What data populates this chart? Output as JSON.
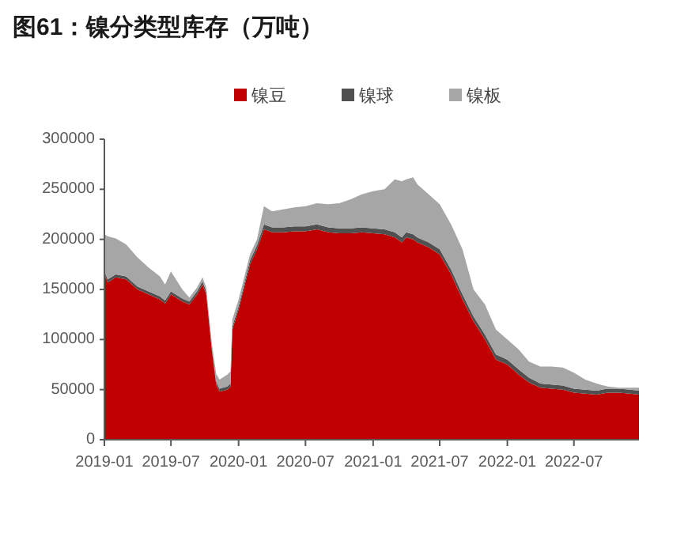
{
  "chart_data": {
    "type": "area",
    "stacked": true,
    "title": "图61：镍分类型库存（万吨）",
    "x": [
      "2019-01-01",
      "2019-01-10",
      "2019-02-01",
      "2019-03-01",
      "2019-04-01",
      "2019-05-01",
      "2019-06-01",
      "2019-06-15",
      "2019-07-01",
      "2019-08-01",
      "2019-08-20",
      "2019-09-10",
      "2019-09-25",
      "2019-10-05",
      "2019-10-20",
      "2019-11-01",
      "2019-11-10",
      "2019-12-01",
      "2019-12-10",
      "2019-12-15",
      "2020-01-01",
      "2020-02-01",
      "2020-02-20",
      "2020-03-10",
      "2020-04-01",
      "2020-05-01",
      "2020-06-01",
      "2020-07-01",
      "2020-08-01",
      "2020-09-01",
      "2020-10-01",
      "2020-11-01",
      "2020-12-01",
      "2021-01-01",
      "2021-02-01",
      "2021-03-01",
      "2021-03-20",
      "2021-04-01",
      "2021-04-20",
      "2021-05-01",
      "2021-06-01",
      "2021-07-01",
      "2021-08-01",
      "2021-09-01",
      "2021-10-01",
      "2021-11-01",
      "2021-12-01",
      "2022-01-01",
      "2022-02-01",
      "2022-03-01",
      "2022-04-01",
      "2022-05-01",
      "2022-06-01",
      "2022-07-01",
      "2022-08-01",
      "2022-09-01",
      "2022-10-01",
      "2022-11-01",
      "2022-12-01",
      "2022-12-25"
    ],
    "series": [
      {
        "name": "镍豆",
        "color": "#c00000",
        "values": [
          165000,
          157000,
          162000,
          160000,
          150000,
          145000,
          140000,
          136000,
          145000,
          138000,
          135000,
          145000,
          155000,
          145000,
          90000,
          55000,
          48000,
          50000,
          53000,
          110000,
          130000,
          175000,
          190000,
          210000,
          207000,
          207000,
          208000,
          208000,
          210000,
          207000,
          206000,
          206000,
          207000,
          206000,
          205000,
          202000,
          197000,
          202000,
          200000,
          197000,
          192000,
          185000,
          165000,
          140000,
          118000,
          100000,
          80000,
          75000,
          65000,
          57000,
          52000,
          51000,
          50000,
          47000,
          46000,
          45000,
          47000,
          47000,
          46000,
          45000
        ]
      },
      {
        "name": "镍球",
        "color": "#505050",
        "values": [
          3000,
          3000,
          3000,
          3000,
          3000,
          3000,
          3000,
          3000,
          3000,
          3000,
          3000,
          3000,
          3000,
          3000,
          3000,
          3000,
          3000,
          3000,
          3000,
          3000,
          3000,
          4000,
          4000,
          5000,
          5000,
          5000,
          5000,
          5000,
          5000,
          5000,
          5000,
          5000,
          5000,
          5000,
          5000,
          5000,
          5000,
          5000,
          5000,
          5000,
          5000,
          5000,
          5000,
          5000,
          5000,
          5000,
          5000,
          5000,
          5000,
          5000,
          4000,
          4000,
          4000,
          4000,
          4000,
          4000,
          4000,
          4000,
          4000,
          4000
        ]
      },
      {
        "name": "镍板",
        "color": "#a6a6a6",
        "values": [
          37000,
          43000,
          36000,
          32000,
          29000,
          24000,
          20000,
          16000,
          20000,
          9000,
          4000,
          4000,
          4000,
          4000,
          4000,
          8000,
          9000,
          12000,
          12000,
          7000,
          7000,
          6000,
          6000,
          18000,
          16000,
          18000,
          19000,
          20000,
          21000,
          23000,
          25000,
          29000,
          33000,
          37000,
          40000,
          53000,
          56000,
          53000,
          57000,
          53000,
          48000,
          45000,
          45000,
          45000,
          27000,
          30000,
          25000,
          20000,
          20000,
          16000,
          17000,
          18000,
          18000,
          16000,
          10000,
          7000,
          2000,
          1000,
          2000,
          3000
        ]
      }
    ],
    "xlim": [
      "2019-01-01",
      "2022-12-25"
    ],
    "xticks": [
      "2019-01",
      "2019-07",
      "2020-01",
      "2020-07",
      "2021-01",
      "2021-07",
      "2022-01",
      "2022-07"
    ],
    "ylim": [
      0,
      300000
    ],
    "yticks": [
      0,
      50000,
      100000,
      150000,
      200000,
      250000,
      300000
    ],
    "grid": false,
    "legend": "top"
  }
}
